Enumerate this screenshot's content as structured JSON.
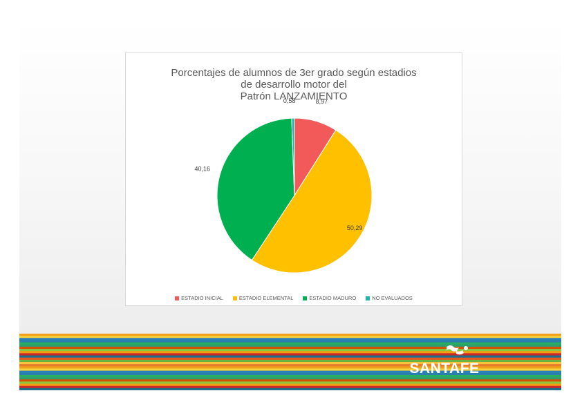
{
  "chart_data": {
    "type": "pie",
    "title_lines": [
      "Porcentajes de alumnos de 3er grado según estadios",
      "de desarrollo motor del",
      "Patrón LANZAMIENTO"
    ],
    "categories": [
      "ESTADIO INICIAL",
      "ESTADIO ELEMENTAL",
      "ESTADIO MADURO",
      "NO EVALUADOS"
    ],
    "values": [
      8.97,
      50.29,
      40.16,
      0.58
    ],
    "value_labels": [
      "8,97",
      "50,29",
      "40,16",
      "0,58"
    ],
    "colors": [
      "#f25a5a",
      "#ffc000",
      "#00b050",
      "#1fb5a6"
    ],
    "legend_position": "bottom",
    "start_angle_deg": 0,
    "direction": "clockwise"
  },
  "branding": {
    "logo_text": "SANTAFE",
    "stripe_colors": [
      "#f0a11a",
      "#f6c23b",
      "#e2581f",
      "#c9282b",
      "#8cc63f",
      "#2f9e6f",
      "#2a7fb0",
      "#f4d03f",
      "#e57b2b",
      "#6db33f",
      "#1c6e8c",
      "#f39c12",
      "#d35400",
      "#27ae60",
      "#2980b9"
    ]
  }
}
